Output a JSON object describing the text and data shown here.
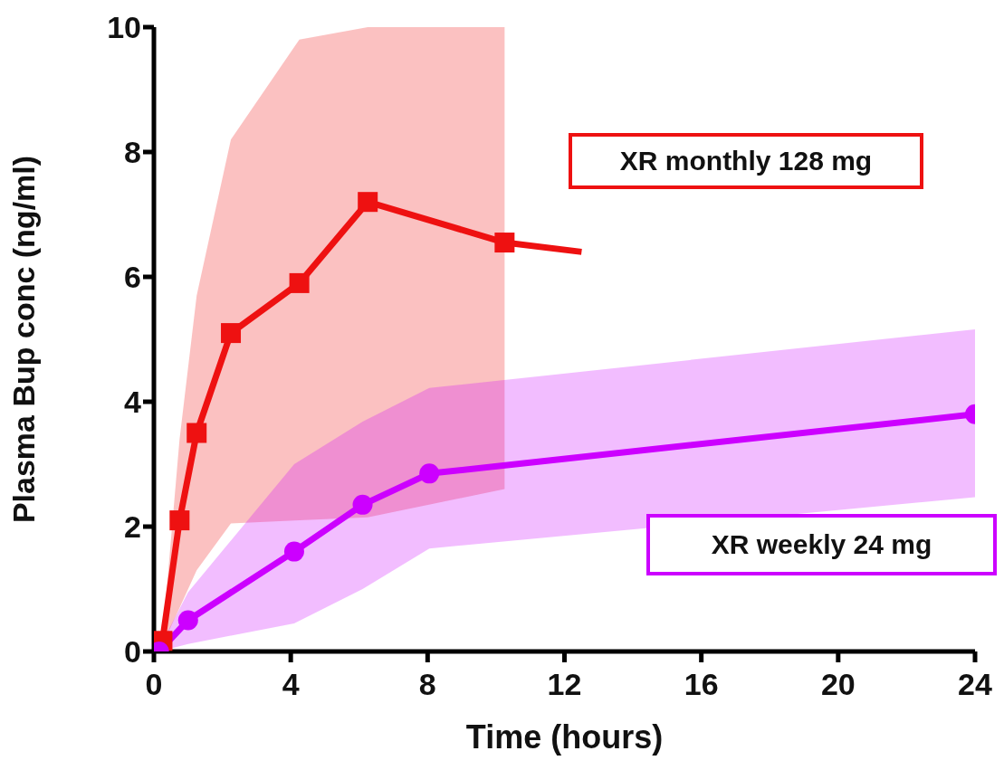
{
  "chart_data": {
    "type": "line",
    "xlabel": "Time (hours)",
    "ylabel": "Plasma Bup conc (ng/ml)",
    "xlim": [
      0,
      24
    ],
    "xticks": [
      0,
      4,
      8,
      12,
      16,
      20,
      24
    ],
    "ylim": [
      0,
      10
    ],
    "yticks": [
      0,
      2,
      4,
      6,
      8,
      10
    ],
    "grid": false,
    "legend": false,
    "line_style": "solid",
    "series": [
      {
        "name": "XR monthly 128 mg",
        "color": "#ee1111",
        "marker": "square",
        "x": [
          0.25,
          0.75,
          1.25,
          2.25,
          4.25,
          6.25,
          10.25
        ],
        "values": [
          0.17,
          2.1,
          3.5,
          5.1,
          5.9,
          7.2,
          6.55
        ],
        "lower": [
          0.1,
          0.7,
          1.3,
          2.05,
          2.1,
          2.15,
          2.6
        ],
        "upper": [
          0.2,
          3.4,
          5.7,
          8.2,
          9.8,
          10,
          10
        ]
      },
      {
        "color": "#ee1111",
        "marker": "none",
        "x": [
          10.25,
          12.5
        ],
        "values": [
          6.55,
          6.4
        ]
      },
      {
        "name": "XR weekly 24 mg",
        "color": "#cc00ff",
        "marker": "circle",
        "x": [
          0.15,
          1.0,
          4.1,
          6.1,
          8.05,
          24
        ],
        "values": [
          0,
          0.5,
          1.6,
          2.35,
          2.85,
          3.8
        ],
        "lower": [
          0,
          0.12,
          0.45,
          1.0,
          1.65,
          2.47
        ],
        "upper": [
          0.05,
          0.95,
          3.0,
          3.68,
          4.22,
          5.16
        ]
      }
    ]
  }
}
